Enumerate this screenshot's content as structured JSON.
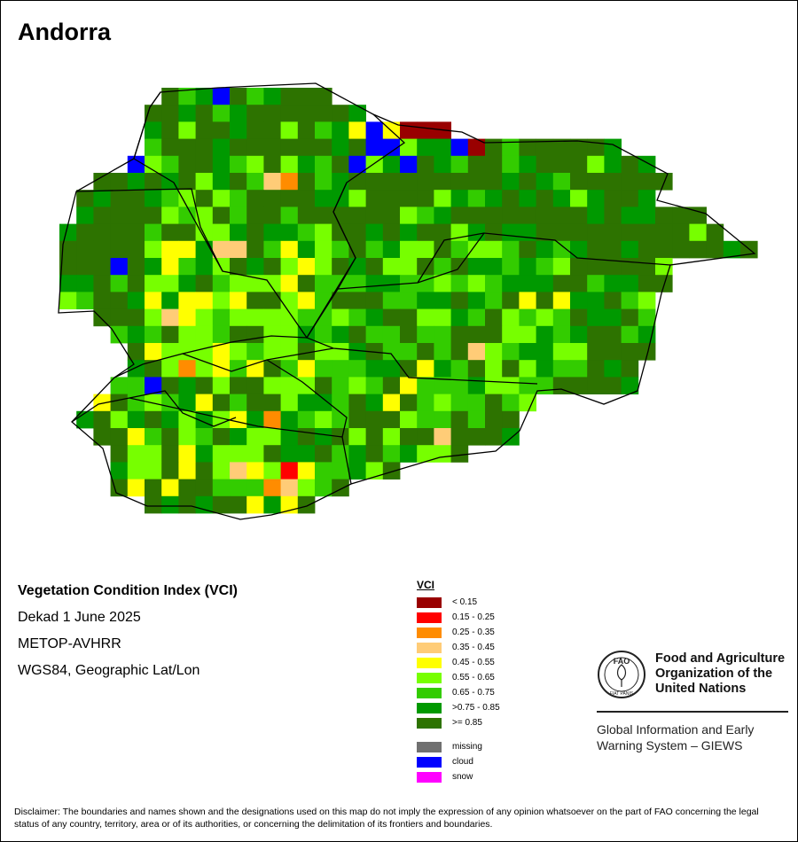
{
  "title": "Andorra",
  "map_info": {
    "index_name": "Vegetation Condition Index (VCI)",
    "period": "Dekad 1 June 2025",
    "sensor": "METOP-AVHRR",
    "projection": "WGS84, Geographic Lat/Lon"
  },
  "legend": {
    "title": "VCI",
    "classes": [
      {
        "label": "< 0.15",
        "color": "#990000"
      },
      {
        "label": "0.15 - 0.25",
        "color": "#ff0000"
      },
      {
        "label": "0.25 - 0.35",
        "color": "#ff8c00"
      },
      {
        "label": "0.35 - 0.45",
        "color": "#ffcc77"
      },
      {
        "label": "0.45 - 0.55",
        "color": "#ffff00"
      },
      {
        "label": "0.55 - 0.65",
        "color": "#77ff00"
      },
      {
        "label": "0.65 - 0.75",
        "color": "#33cc00"
      },
      {
        "label": ">0.75 - 0.85",
        "color": "#009900"
      },
      {
        "label": ">= 0.85",
        "color": "#2d7300"
      }
    ],
    "special": [
      {
        "label": "missing",
        "color": "#707070"
      },
      {
        "label": "cloud",
        "color": "#0000ff"
      },
      {
        "label": "snow",
        "color": "#ff00ff"
      }
    ]
  },
  "organization": {
    "name": "Food and Agriculture\nOrganization of the\nUnited Nations",
    "logo_text": "FAO",
    "logo_motto": "FIAT PANIS",
    "system": "Global Information and Early\nWarning System – GIEWS"
  },
  "disclaimer": "Disclaimer: The boundaries and names shown and the designations used on this map do not imply the expression of any opinion whatsoever on the part of FAO concerning the legal status of any country, territory, area or of its authorities, or concerning the delimitation of its frontiers and boundaries."
}
